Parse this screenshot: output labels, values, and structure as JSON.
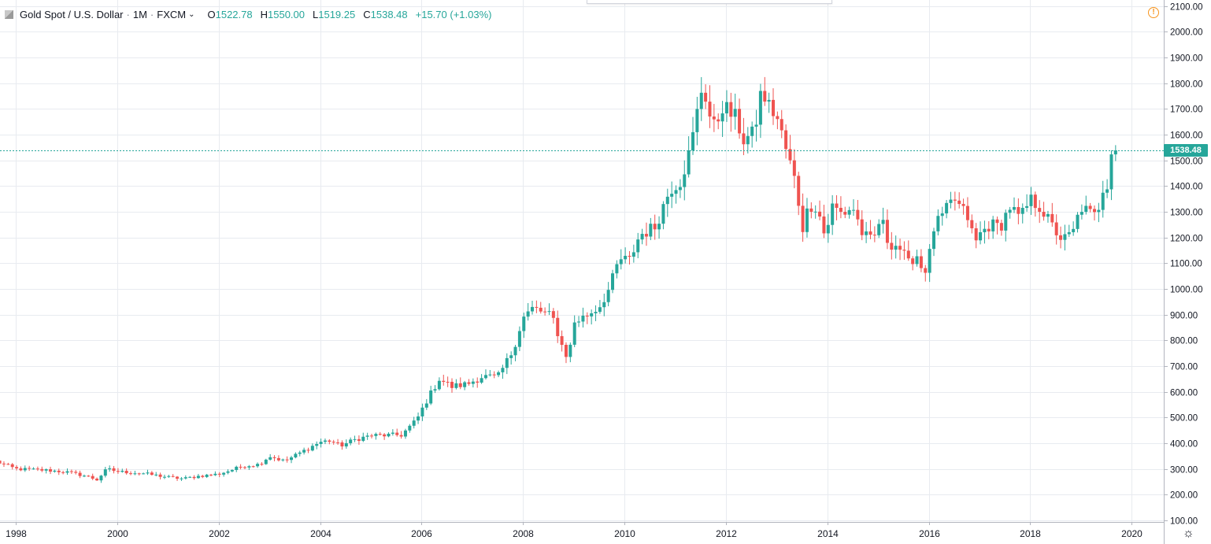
{
  "legend": {
    "symbol": "Gold Spot / U.S. Dollar",
    "separator": "·",
    "interval": "1M",
    "exchange": "FXCM",
    "chevron": "⌄",
    "open_key": "O",
    "open_val": "1522.78",
    "high_key": "H",
    "high_val": "1550.00",
    "low_key": "L",
    "low_val": "1519.25",
    "close_key": "C",
    "close_val": "1538.48",
    "change": "+15.70 (+1.03%)"
  },
  "alert_glyph": "!",
  "settings_icon": "gear-icon",
  "colors": {
    "up": "#26a69a",
    "down": "#ef5350",
    "grid": "#e8ebf0",
    "axis_text": "#131722",
    "price_line": "#26a69a"
  },
  "chart_data": {
    "type": "candlestick",
    "last_price_label": "1538.48",
    "last_price": 1538.48,
    "y_ticks": [
      "100.00",
      "200.00",
      "300.00",
      "400.00",
      "500.00",
      "600.00",
      "700.00",
      "800.00",
      "900.00",
      "1000.00",
      "1100.00",
      "1200.00",
      "1300.00",
      "1400.00",
      "1500.00",
      "1600.00",
      "1700.00",
      "1800.00",
      "1900.00",
      "2000.00",
      "2100.00"
    ],
    "x_ticks": [
      "1998",
      "2000",
      "2002",
      "2004",
      "2006",
      "2008",
      "2010",
      "2012",
      "2014",
      "2016",
      "2018",
      "2020"
    ],
    "ylim": [
      100,
      2100
    ],
    "xlim": [
      1997.65,
      2020.52
    ],
    "grid": true,
    "anchors": [
      [
        1997.6,
        330
      ],
      [
        1998.0,
        300
      ],
      [
        1998.6,
        295
      ],
      [
        1999.0,
        288
      ],
      [
        1999.4,
        272
      ],
      [
        1999.6,
        258
      ],
      [
        1999.8,
        300
      ],
      [
        2000.0,
        290
      ],
      [
        2000.5,
        283
      ],
      [
        2001.0,
        268
      ],
      [
        2001.3,
        262
      ],
      [
        2001.6,
        272
      ],
      [
        2002.0,
        280
      ],
      [
        2002.5,
        312
      ],
      [
        2002.8,
        318
      ],
      [
        2003.0,
        350
      ],
      [
        2003.3,
        330
      ],
      [
        2003.6,
        362
      ],
      [
        2004.0,
        405
      ],
      [
        2004.2,
        410
      ],
      [
        2004.4,
        390
      ],
      [
        2004.7,
        415
      ],
      [
        2005.0,
        430
      ],
      [
        2005.6,
        432
      ],
      [
        2005.9,
        490
      ],
      [
        2006.1,
        565
      ],
      [
        2006.35,
        650
      ],
      [
        2006.6,
        620
      ],
      [
        2006.9,
        630
      ],
      [
        2007.2,
        660
      ],
      [
        2007.5,
        655
      ],
      [
        2007.8,
        760
      ],
      [
        2008.0,
        888
      ],
      [
        2008.2,
        925
      ],
      [
        2008.5,
        900
      ],
      [
        2008.6,
        880
      ],
      [
        2008.8,
        760
      ],
      [
        2008.9,
        730
      ],
      [
        2009.0,
        870
      ],
      [
        2009.2,
        890
      ],
      [
        2009.5,
        930
      ],
      [
        2009.7,
        1000
      ],
      [
        2009.9,
        1115
      ],
      [
        2010.1,
        1110
      ],
      [
        2010.3,
        1210
      ],
      [
        2010.6,
        1240
      ],
      [
        2010.9,
        1390
      ],
      [
        2011.1,
        1420
      ],
      [
        2011.3,
        1540
      ],
      [
        2011.55,
        1810
      ],
      [
        2011.65,
        1690
      ],
      [
        2011.8,
        1610
      ],
      [
        2011.9,
        1720
      ],
      [
        2012.0,
        1700
      ],
      [
        2012.2,
        1660
      ],
      [
        2012.35,
        1580
      ],
      [
        2012.55,
        1600
      ],
      [
        2012.7,
        1770
      ],
      [
        2012.85,
        1710
      ],
      [
        2013.0,
        1670
      ],
      [
        2013.1,
        1600
      ],
      [
        2013.2,
        1530
      ],
      [
        2013.3,
        1465
      ],
      [
        2013.4,
        1390
      ],
      [
        2013.5,
        1230
      ],
      [
        2013.65,
        1330
      ],
      [
        2013.8,
        1320
      ],
      [
        2013.95,
        1205
      ],
      [
        2014.1,
        1320
      ],
      [
        2014.3,
        1290
      ],
      [
        2014.5,
        1320
      ],
      [
        2014.7,
        1210
      ],
      [
        2014.9,
        1180
      ],
      [
        2015.05,
        1280
      ],
      [
        2015.2,
        1180
      ],
      [
        2015.4,
        1170
      ],
      [
        2015.6,
        1095
      ],
      [
        2015.75,
        1140
      ],
      [
        2015.9,
        1060
      ],
      [
        2016.0,
        1115
      ],
      [
        2016.1,
        1235
      ],
      [
        2016.3,
        1290
      ],
      [
        2016.5,
        1350
      ],
      [
        2016.6,
        1320
      ],
      [
        2016.8,
        1270
      ],
      [
        2016.9,
        1170
      ],
      [
        2017.0,
        1210
      ],
      [
        2017.2,
        1250
      ],
      [
        2017.4,
        1240
      ],
      [
        2017.6,
        1320
      ],
      [
        2017.8,
        1270
      ],
      [
        2018.0,
        1345
      ],
      [
        2018.2,
        1320
      ],
      [
        2018.4,
        1250
      ],
      [
        2018.6,
        1200
      ],
      [
        2018.7,
        1192
      ],
      [
        2018.85,
        1222
      ],
      [
        2019.0,
        1320
      ],
      [
        2019.15,
        1295
      ],
      [
        2019.3,
        1280
      ],
      [
        2019.45,
        1410
      ],
      [
        2019.55,
        1415
      ],
      [
        2019.62,
        1523
      ],
      [
        2019.7,
        1538
      ]
    ]
  }
}
